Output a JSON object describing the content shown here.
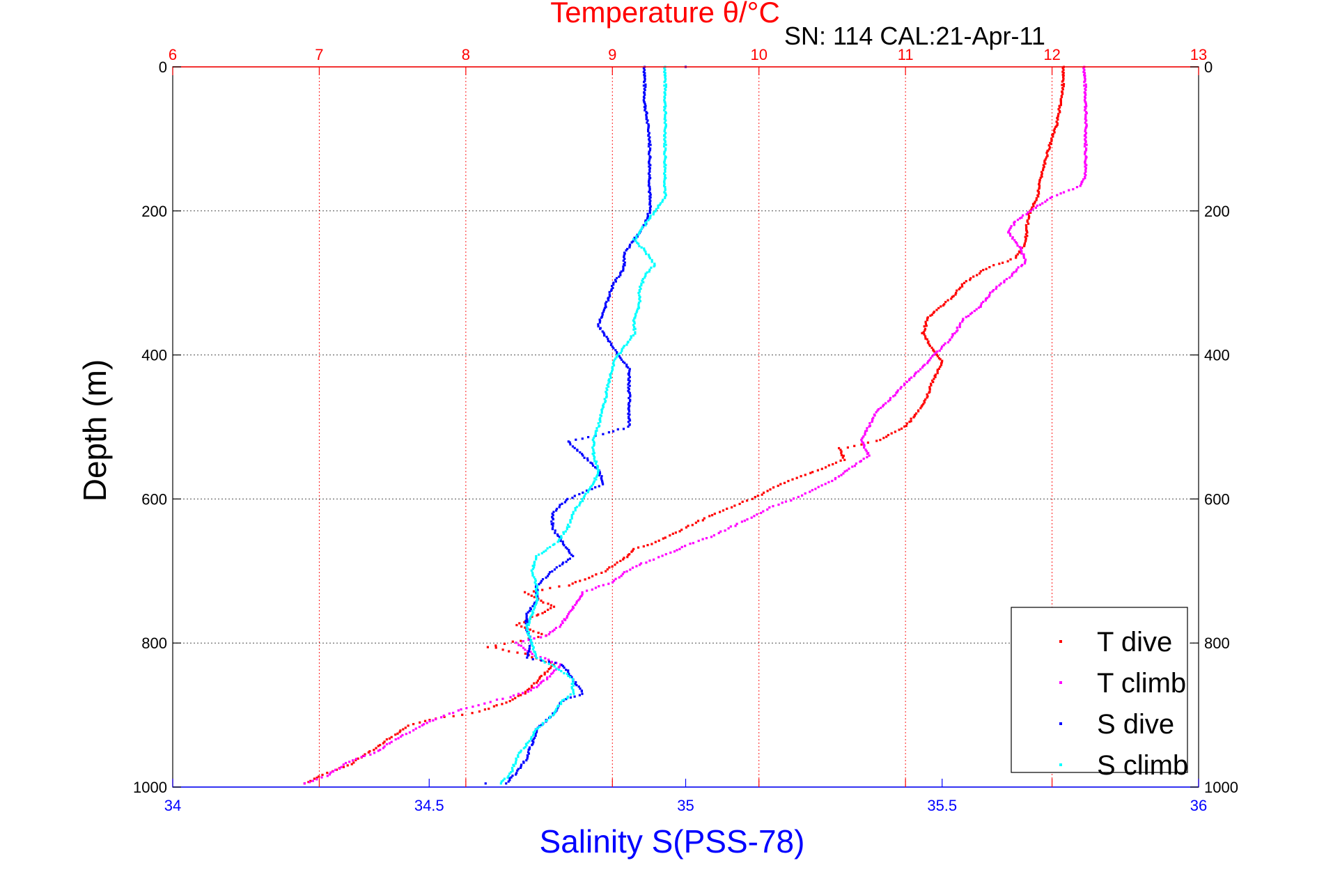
{
  "chart_data": {
    "type": "scatter",
    "title_top": "Temperature θ/°C",
    "subtitle": "SN: 114  CAL:21-Apr-11",
    "xlabel_bottom": "Salinity S(PSS-78)",
    "ylabel": "Depth (m)",
    "x_top": {
      "label": "Temperature θ/°C",
      "range": [
        6,
        13
      ],
      "ticks": [
        "6",
        "7",
        "8",
        "9",
        "10",
        "11",
        "12",
        "13"
      ],
      "color": "#ff0000",
      "grid": true
    },
    "x_bottom": {
      "label": "Salinity S(PSS-78)",
      "range": [
        34,
        36
      ],
      "ticks": [
        "34",
        "34.5",
        "35",
        "35.5",
        "36"
      ],
      "color": "#0000ff",
      "grid": false
    },
    "y": {
      "label": "Depth (m)",
      "range": [
        0,
        1000
      ],
      "reversed": true,
      "ticks": [
        "0",
        "200",
        "400",
        "600",
        "800",
        "1000"
      ],
      "grid": true
    },
    "legend": {
      "placement": "bottom-right",
      "entries": [
        "T dive",
        "T climb",
        "S dive",
        "S climb"
      ]
    },
    "series": [
      {
        "name": "T dive",
        "axis": "temperature",
        "color": "#ff0000",
        "points": [
          [
            12.08,
            0
          ],
          [
            12.07,
            40
          ],
          [
            12.03,
            80
          ],
          [
            11.97,
            120
          ],
          [
            11.93,
            150
          ],
          [
            11.9,
            180
          ],
          [
            11.85,
            200
          ],
          [
            11.83,
            220
          ],
          [
            11.82,
            245
          ],
          [
            11.75,
            265
          ],
          [
            11.55,
            280
          ],
          [
            11.4,
            300
          ],
          [
            11.32,
            320
          ],
          [
            11.2,
            340
          ],
          [
            11.15,
            350
          ],
          [
            11.12,
            370
          ],
          [
            11.18,
            390
          ],
          [
            11.22,
            400
          ],
          [
            11.25,
            410
          ],
          [
            11.18,
            440
          ],
          [
            11.12,
            470
          ],
          [
            11.0,
            500
          ],
          [
            10.8,
            520
          ],
          [
            10.55,
            530
          ],
          [
            10.58,
            545
          ],
          [
            10.4,
            560
          ],
          [
            10.15,
            580
          ],
          [
            9.95,
            600
          ],
          [
            9.7,
            620
          ],
          [
            9.5,
            640
          ],
          [
            9.3,
            660
          ],
          [
            9.15,
            670
          ],
          [
            9.1,
            680
          ],
          [
            8.95,
            700
          ],
          [
            8.7,
            720
          ],
          [
            8.4,
            730
          ],
          [
            8.6,
            750
          ],
          [
            8.5,
            760
          ],
          [
            8.35,
            775
          ],
          [
            8.55,
            790
          ],
          [
            8.15,
            805
          ],
          [
            8.4,
            815
          ],
          [
            8.6,
            830
          ],
          [
            8.5,
            850
          ],
          [
            8.4,
            870
          ],
          [
            8.3,
            880
          ],
          [
            8.1,
            895
          ],
          [
            7.8,
            905
          ],
          [
            7.6,
            915
          ],
          [
            7.5,
            930
          ],
          [
            7.35,
            950
          ],
          [
            7.2,
            970
          ],
          [
            7.0,
            985
          ],
          [
            6.9,
            995
          ]
        ]
      },
      {
        "name": "T climb",
        "axis": "temperature",
        "color": "#ff00ff",
        "points": [
          [
            12.22,
            0
          ],
          [
            12.23,
            50
          ],
          [
            12.23,
            100
          ],
          [
            12.23,
            150
          ],
          [
            12.2,
            165
          ],
          [
            12.0,
            180
          ],
          [
            11.85,
            200
          ],
          [
            11.75,
            215
          ],
          [
            11.7,
            230
          ],
          [
            11.78,
            250
          ],
          [
            11.82,
            270
          ],
          [
            11.72,
            290
          ],
          [
            11.6,
            310
          ],
          [
            11.5,
            335
          ],
          [
            11.4,
            350
          ],
          [
            11.35,
            365
          ],
          [
            11.3,
            380
          ],
          [
            11.2,
            400
          ],
          [
            11.1,
            420
          ],
          [
            11.0,
            440
          ],
          [
            10.9,
            460
          ],
          [
            10.8,
            480
          ],
          [
            10.75,
            500
          ],
          [
            10.7,
            520
          ],
          [
            10.75,
            540
          ],
          [
            10.6,
            560
          ],
          [
            10.5,
            575
          ],
          [
            10.3,
            595
          ],
          [
            10.1,
            610
          ],
          [
            9.9,
            630
          ],
          [
            9.7,
            650
          ],
          [
            9.5,
            665
          ],
          [
            9.4,
            675
          ],
          [
            9.2,
            690
          ],
          [
            9.1,
            700
          ],
          [
            9.0,
            715
          ],
          [
            8.8,
            730
          ],
          [
            8.75,
            745
          ],
          [
            8.7,
            760
          ],
          [
            8.65,
            775
          ],
          [
            8.55,
            790
          ],
          [
            8.35,
            800
          ],
          [
            8.45,
            815
          ],
          [
            8.65,
            830
          ],
          [
            8.55,
            850
          ],
          [
            8.45,
            865
          ],
          [
            8.3,
            875
          ],
          [
            8.0,
            890
          ],
          [
            7.8,
            905
          ],
          [
            7.7,
            915
          ],
          [
            7.55,
            930
          ],
          [
            7.4,
            950
          ],
          [
            7.2,
            965
          ],
          [
            7.05,
            985
          ],
          [
            6.9,
            995
          ]
        ]
      },
      {
        "name": "S dive",
        "axis": "salinity",
        "color": "#0000ff",
        "points": [
          [
            34.92,
            0
          ],
          [
            34.92,
            50
          ],
          [
            34.93,
            100
          ],
          [
            34.93,
            150
          ],
          [
            34.93,
            200
          ],
          [
            34.92,
            220
          ],
          [
            34.9,
            240
          ],
          [
            34.88,
            260
          ],
          [
            34.88,
            280
          ],
          [
            34.86,
            300
          ],
          [
            34.85,
            320
          ],
          [
            34.84,
            340
          ],
          [
            34.83,
            360
          ],
          [
            34.85,
            380
          ],
          [
            34.87,
            400
          ],
          [
            34.89,
            420
          ],
          [
            34.89,
            460
          ],
          [
            34.89,
            500
          ],
          [
            34.84,
            510
          ],
          [
            34.77,
            520
          ],
          [
            34.8,
            540
          ],
          [
            34.83,
            560
          ],
          [
            34.84,
            580
          ],
          [
            34.77,
            600
          ],
          [
            34.74,
            620
          ],
          [
            34.74,
            640
          ],
          [
            34.76,
            660
          ],
          [
            34.78,
            680
          ],
          [
            34.74,
            700
          ],
          [
            34.71,
            720
          ],
          [
            34.71,
            740
          ],
          [
            34.69,
            760
          ],
          [
            34.69,
            780
          ],
          [
            34.7,
            800
          ],
          [
            34.69,
            820
          ],
          [
            34.76,
            830
          ],
          [
            34.78,
            850
          ],
          [
            34.8,
            870
          ],
          [
            34.76,
            880
          ],
          [
            34.74,
            900
          ],
          [
            34.71,
            920
          ],
          [
            34.7,
            940
          ],
          [
            34.69,
            960
          ],
          [
            34.67,
            980
          ],
          [
            34.65,
            995
          ]
        ]
      },
      {
        "name": "S climb",
        "axis": "salinity",
        "color": "#00ffff",
        "points": [
          [
            34.96,
            0
          ],
          [
            34.96,
            50
          ],
          [
            34.96,
            100
          ],
          [
            34.96,
            150
          ],
          [
            34.96,
            180
          ],
          [
            34.94,
            200
          ],
          [
            34.92,
            220
          ],
          [
            34.9,
            240
          ],
          [
            34.92,
            255
          ],
          [
            34.94,
            275
          ],
          [
            34.92,
            290
          ],
          [
            34.91,
            310
          ],
          [
            34.91,
            330
          ],
          [
            34.9,
            350
          ],
          [
            34.9,
            370
          ],
          [
            34.88,
            390
          ],
          [
            34.86,
            410
          ],
          [
            34.85,
            440
          ],
          [
            34.84,
            470
          ],
          [
            34.83,
            500
          ],
          [
            34.82,
            520
          ],
          [
            34.82,
            540
          ],
          [
            34.83,
            560
          ],
          [
            34.82,
            580
          ],
          [
            34.8,
            600
          ],
          [
            34.78,
            620
          ],
          [
            34.77,
            640
          ],
          [
            34.75,
            660
          ],
          [
            34.71,
            680
          ],
          [
            34.7,
            700
          ],
          [
            34.71,
            720
          ],
          [
            34.71,
            740
          ],
          [
            34.7,
            760
          ],
          [
            34.69,
            780
          ],
          [
            34.7,
            800
          ],
          [
            34.71,
            820
          ],
          [
            34.75,
            835
          ],
          [
            34.78,
            850
          ],
          [
            34.78,
            870
          ],
          [
            34.76,
            880
          ],
          [
            34.74,
            900
          ],
          [
            34.71,
            920
          ],
          [
            34.69,
            940
          ],
          [
            34.67,
            960
          ],
          [
            34.66,
            980
          ],
          [
            34.64,
            995
          ]
        ]
      }
    ],
    "extra_markers": [
      {
        "series": "S dive",
        "points": [
          [
            35.0,
            0
          ],
          [
            34.61,
            995
          ]
        ]
      }
    ]
  }
}
